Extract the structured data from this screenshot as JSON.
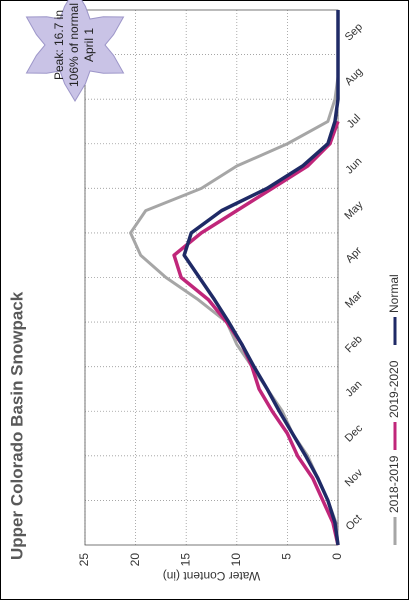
{
  "chart_data": {
    "type": "line",
    "title": "Upper Colorado Basin Snowpack",
    "y_label": "Water Content (in)",
    "annotation": [
      "Peak: 16.7 in",
      "106% of normal",
      "April 1"
    ],
    "x": [
      0,
      0.5,
      1,
      1.5,
      2,
      2.5,
      3,
      3.5,
      4,
      4.5,
      5,
      5.5,
      6,
      6.5,
      7,
      7.5,
      8,
      8.5,
      9,
      9.5,
      10,
      10.5,
      11,
      11.5,
      12
    ],
    "xlim": [
      0,
      12
    ],
    "xticks": [
      {
        "value": 0,
        "label": "Oct"
      },
      {
        "value": 1,
        "label": "Nov"
      },
      {
        "value": 2,
        "label": "Dec"
      },
      {
        "value": 3,
        "label": "Jan"
      },
      {
        "value": 4,
        "label": "Feb"
      },
      {
        "value": 5,
        "label": "Mar"
      },
      {
        "value": 6,
        "label": "Apr"
      },
      {
        "value": 7,
        "label": "May"
      },
      {
        "value": 8,
        "label": "Jun"
      },
      {
        "value": 9,
        "label": "Jul"
      },
      {
        "value": 10,
        "label": "Aug"
      },
      {
        "value": 11,
        "label": "Sep"
      }
    ],
    "ylim": [
      0,
      25
    ],
    "yticks": [
      0,
      5,
      10,
      15,
      20,
      25
    ],
    "grid": true,
    "series": [
      {
        "name": "2018-2019",
        "color": "#a6a6a6",
        "values": [
          0,
          0.2,
          1,
          2,
          3,
          4.5,
          5.5,
          7,
          8.5,
          10,
          11,
          13.8,
          17,
          19.5,
          20.5,
          19,
          13.5,
          10,
          5,
          1,
          0.3,
          0,
          null,
          null,
          null
        ]
      },
      {
        "name": "2019-2020",
        "color": "#c0267a",
        "values": [
          0,
          0.5,
          1.5,
          2.5,
          4,
          5,
          6.5,
          7.8,
          8.5,
          9.5,
          11,
          12.8,
          15.5,
          16.2,
          13.5,
          10,
          6.5,
          3,
          0.8,
          0,
          null,
          null,
          null,
          null,
          null
        ]
      },
      {
        "name": "Normal",
        "color": "#1f2a66",
        "values": [
          0,
          0.3,
          1,
          2,
          3.2,
          4.5,
          5.8,
          7,
          8.3,
          9.5,
          10.8,
          12.2,
          13.7,
          15.2,
          14.5,
          11.5,
          7,
          3.5,
          1,
          0.3,
          0,
          0,
          0,
          0,
          0
        ]
      }
    ]
  }
}
